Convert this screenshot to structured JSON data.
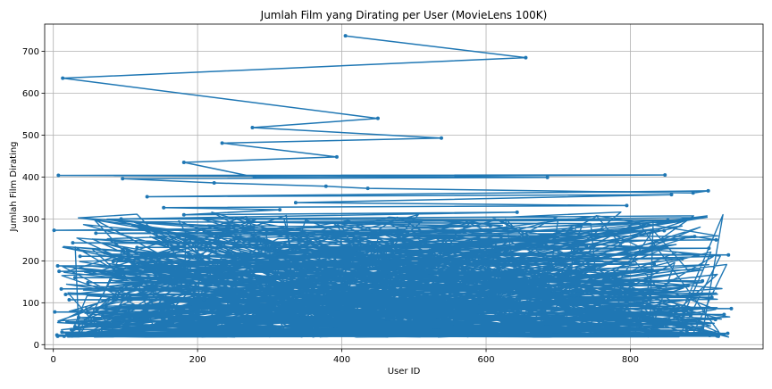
{
  "chart_data": {
    "type": "line",
    "title": "Jumlah Film yang Dirating per User (MovieLens 100K)",
    "xlabel": "User ID",
    "ylabel": "Jumlah Film Dirating",
    "xlim": [
      -12,
      984
    ],
    "ylim": [
      -10,
      765
    ],
    "xticks": [
      "0",
      "200",
      "400",
      "600",
      "800"
    ],
    "yticks": [
      "0",
      "100",
      "200",
      "300",
      "400",
      "500",
      "600",
      "700"
    ],
    "grid": true,
    "marker": "dot",
    "series_color": "#1f77b4",
    "series": [
      {
        "x": [
          405,
          655,
          13,
          450,
          276,
          538,
          234,
          393,
          181,
          279,
          848,
          7,
          685,
          96,
          223,
          378,
          436,
          887,
          908,
          130,
          857,
          336,
          795,
          153,
          314,
          181,
          643,
          94,
          852,
          269,
          606,
          1,
          847,
          59,
          889,
          919,
          27,
          739,
          116,
          909,
          311,
          936,
          37,
          872,
          83,
          833,
          6,
          618,
          8,
          709,
          30,
          900,
          48,
          880,
          11,
          846,
          17,
          913,
          22,
          816,
          73,
          940,
          2,
          930,
          35,
          918,
          19,
          860,
          30,
          900,
          25,
          878,
          12,
          935,
          19,
          930,
          5,
          910,
          26,
          920,
          15,
          922,
          6
        ],
        "y": [
          737,
          685,
          636,
          540,
          518,
          493,
          481,
          448,
          435,
          400,
          405,
          404,
          399,
          396,
          386,
          378,
          373,
          362,
          367,
          353,
          358,
          339,
          332,
          327,
          322,
          310,
          316,
          300,
          297,
          293,
          283,
          273,
          272,
          266,
          258,
          250,
          243,
          235,
          232,
          230,
          224,
          214,
          211,
          205,
          198,
          192,
          188,
          180,
          175,
          170,
          160,
          152,
          148,
          141,
          133,
          125,
          120,
          113,
          107,
          99,
          92,
          86,
          78,
          72,
          65,
          60,
          55,
          48,
          43,
          40,
          36,
          33,
          30,
          27,
          25,
          24,
          23,
          22,
          21,
          21,
          20,
          20,
          20
        ]
      }
    ]
  }
}
